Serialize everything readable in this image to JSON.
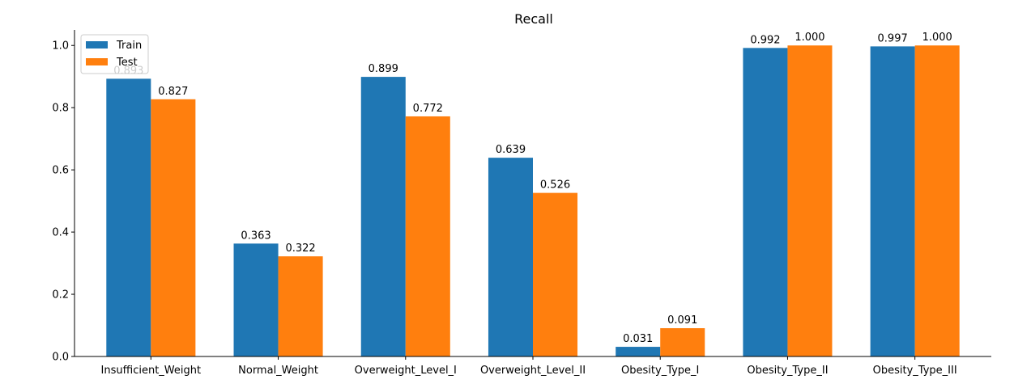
{
  "chart_data": {
    "type": "bar",
    "title": "Recall",
    "xlabel": "",
    "ylabel": "",
    "ylim": [
      0,
      1.05
    ],
    "yticks": [
      "0.0",
      "0.2",
      "0.4",
      "0.6",
      "0.8",
      "1.0"
    ],
    "categories": [
      "Insufficient_Weight",
      "Normal_Weight",
      "Overweight_Level_I",
      "Overweight_Level_II",
      "Obesity_Type_I",
      "Obesity_Type_II",
      "Obesity_Type_III"
    ],
    "series": [
      {
        "name": "Train",
        "color": "#1f77b4",
        "values": [
          0.893,
          0.363,
          0.899,
          0.639,
          0.031,
          0.992,
          0.997
        ],
        "labels": [
          "0.893",
          "0.363",
          "0.899",
          "0.639",
          "0.031",
          "0.992",
          "0.997"
        ]
      },
      {
        "name": "Test",
        "color": "#ff7f0e",
        "values": [
          0.827,
          0.322,
          0.772,
          0.526,
          0.091,
          1.0,
          1.0
        ],
        "labels": [
          "0.827",
          "0.322",
          "0.772",
          "0.526",
          "0.091",
          "1.000",
          "1.000"
        ]
      }
    ],
    "legend_position": "top-left",
    "grid": false
  }
}
